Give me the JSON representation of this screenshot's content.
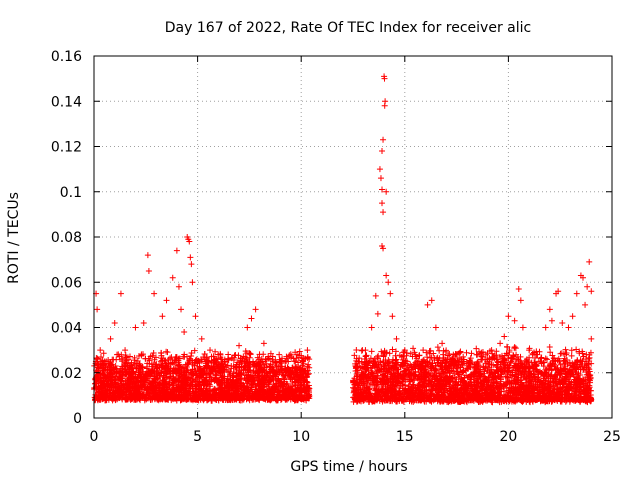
{
  "chart_data": {
    "type": "scatter",
    "title": "Day 167 of 2022, Rate Of TEC Index for receiver alic",
    "xlabel": "GPS time / hours",
    "ylabel": "ROTI / TECUs",
    "xlim": [
      0,
      25
    ],
    "ylim": [
      0,
      0.16
    ],
    "xticks": [
      0,
      5,
      10,
      15,
      20,
      25
    ],
    "yticks": [
      0,
      0.02,
      0.04,
      0.06,
      0.08,
      0.1,
      0.12,
      0.14,
      0.16
    ],
    "xtick_labels": [
      "0",
      "5",
      "10",
      "15",
      "20",
      "25"
    ],
    "ytick_labels": [
      "0",
      "0.02",
      "0.04",
      "0.06",
      "0.08",
      "0.1",
      "0.12",
      "0.14",
      "0.16"
    ],
    "grid": true,
    "legend": "none",
    "marker": "+",
    "color": "#ff0000",
    "data_gap_hours": [
      10.4,
      12.5
    ],
    "series": [
      {
        "name": "ROTI",
        "points": [
          [
            0.1,
            0.055
          ],
          [
            0.15,
            0.048
          ],
          [
            0.3,
            0.03
          ],
          [
            0.5,
            0.025
          ],
          [
            0.8,
            0.035
          ],
          [
            1.0,
            0.042
          ],
          [
            1.3,
            0.055
          ],
          [
            1.5,
            0.03
          ],
          [
            2.0,
            0.04
          ],
          [
            2.4,
            0.042
          ],
          [
            2.6,
            0.072
          ],
          [
            2.65,
            0.065
          ],
          [
            2.9,
            0.055
          ],
          [
            3.3,
            0.045
          ],
          [
            3.5,
            0.052
          ],
          [
            3.8,
            0.062
          ],
          [
            4.0,
            0.074
          ],
          [
            4.1,
            0.058
          ],
          [
            4.2,
            0.048
          ],
          [
            4.35,
            0.038
          ],
          [
            4.5,
            0.08
          ],
          [
            4.55,
            0.079
          ],
          [
            4.6,
            0.078
          ],
          [
            4.65,
            0.071
          ],
          [
            4.7,
            0.068
          ],
          [
            4.75,
            0.06
          ],
          [
            4.9,
            0.045
          ],
          [
            5.2,
            0.035
          ],
          [
            5.6,
            0.03
          ],
          [
            6.3,
            0.025
          ],
          [
            7.0,
            0.032
          ],
          [
            7.4,
            0.04
          ],
          [
            7.6,
            0.044
          ],
          [
            7.8,
            0.048
          ],
          [
            8.2,
            0.033
          ],
          [
            9.0,
            0.025
          ],
          [
            9.8,
            0.028
          ],
          [
            10.3,
            0.03
          ],
          [
            12.8,
            0.025
          ],
          [
            13.1,
            0.03
          ],
          [
            13.4,
            0.04
          ],
          [
            13.6,
            0.054
          ],
          [
            13.7,
            0.046
          ],
          [
            13.8,
            0.11
          ],
          [
            13.85,
            0.106
          ],
          [
            13.9,
            0.101
          ],
          [
            13.95,
            0.091
          ],
          [
            13.9,
            0.095
          ],
          [
            13.9,
            0.118
          ],
          [
            13.95,
            0.123
          ],
          [
            14.0,
            0.151
          ],
          [
            14.02,
            0.15
          ],
          [
            14.05,
            0.14
          ],
          [
            14.03,
            0.138
          ],
          [
            14.1,
            0.1
          ],
          [
            13.9,
            0.076
          ],
          [
            13.95,
            0.075
          ],
          [
            14.1,
            0.063
          ],
          [
            14.2,
            0.06
          ],
          [
            14.3,
            0.055
          ],
          [
            14.4,
            0.045
          ],
          [
            14.6,
            0.035
          ],
          [
            15.0,
            0.03
          ],
          [
            15.5,
            0.028
          ],
          [
            16.1,
            0.05
          ],
          [
            16.3,
            0.052
          ],
          [
            16.5,
            0.04
          ],
          [
            16.8,
            0.033
          ],
          [
            17.3,
            0.025
          ],
          [
            18.0,
            0.022
          ],
          [
            18.5,
            0.028
          ],
          [
            19.0,
            0.026
          ],
          [
            19.6,
            0.033
          ],
          [
            19.8,
            0.036
          ],
          [
            20.0,
            0.045
          ],
          [
            20.3,
            0.043
          ],
          [
            20.5,
            0.057
          ],
          [
            20.6,
            0.052
          ],
          [
            20.7,
            0.04
          ],
          [
            21.0,
            0.03
          ],
          [
            21.4,
            0.028
          ],
          [
            21.8,
            0.04
          ],
          [
            22.0,
            0.048
          ],
          [
            22.1,
            0.043
          ],
          [
            22.3,
            0.055
          ],
          [
            22.4,
            0.056
          ],
          [
            22.6,
            0.042
          ],
          [
            22.9,
            0.04
          ],
          [
            23.1,
            0.045
          ],
          [
            23.3,
            0.055
          ],
          [
            23.5,
            0.063
          ],
          [
            23.6,
            0.062
          ],
          [
            23.7,
            0.05
          ],
          [
            23.8,
            0.058
          ],
          [
            23.9,
            0.069
          ],
          [
            24.0,
            0.056
          ],
          [
            24.0,
            0.035
          ]
        ],
        "dense_band": [
          {
            "x": [
              0,
              10.4
            ],
            "y": [
              0.005,
              0.03
            ]
          },
          {
            "x": [
              12.5,
              24
            ],
            "y": [
              0.004,
              0.032
            ]
          }
        ]
      }
    ]
  }
}
